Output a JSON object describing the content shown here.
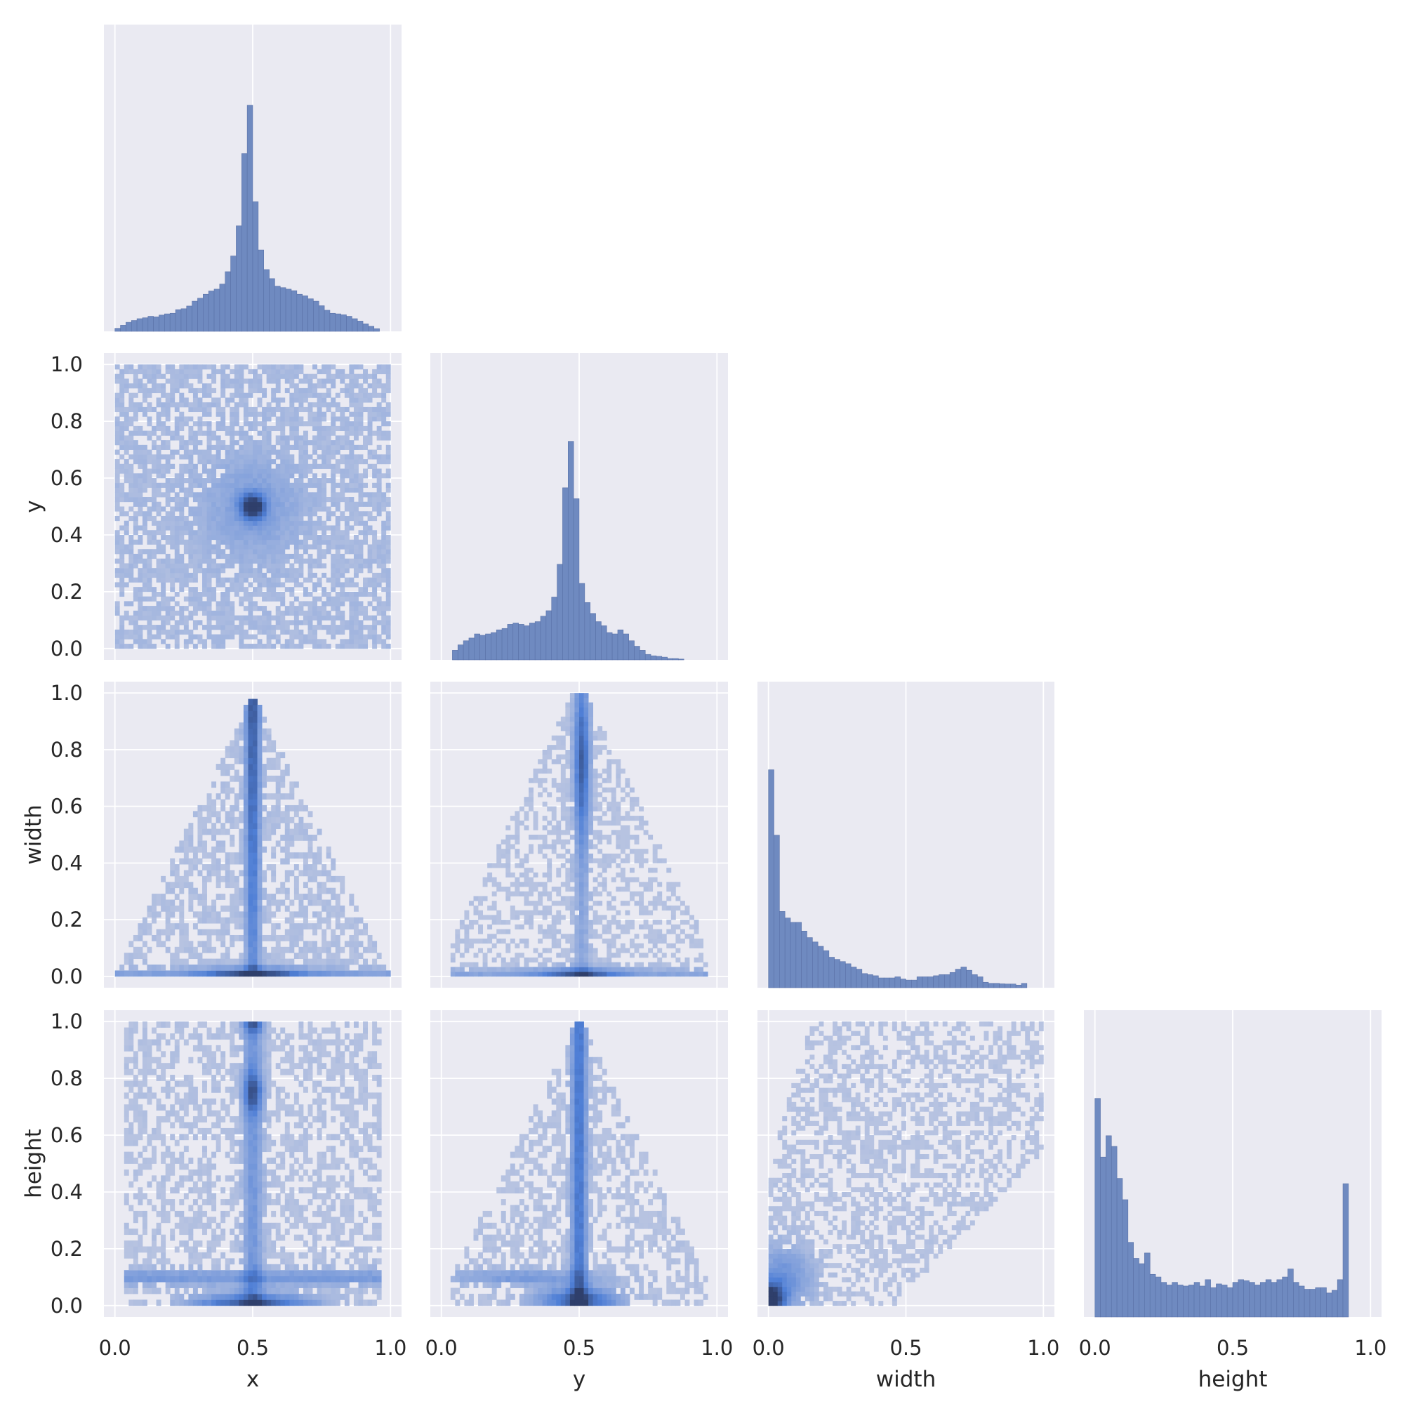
{
  "chart_data": {
    "type": "pairplot",
    "variables": [
      "x",
      "y",
      "width",
      "height"
    ],
    "axis_labels": {
      "x": "x",
      "y": "y",
      "width": "width",
      "height": "height"
    },
    "ticks": [
      0.0,
      0.5,
      1.0
    ],
    "tick_labels_diag": [
      "0.0",
      "0.5",
      "1.0"
    ],
    "y_ticks": [
      0.0,
      0.2,
      0.4,
      0.6,
      0.8,
      1.0
    ],
    "y_tick_labels": [
      "0.0",
      "0.2",
      "0.4",
      "0.6",
      "0.8",
      "1.0"
    ],
    "xlim": [
      -0.04,
      1.04
    ],
    "ylim": [
      -0.04,
      1.04
    ],
    "grid": true,
    "corner": true,
    "colors": {
      "background": "#eaeaf2",
      "grid": "#ffffff",
      "bar": "#6f8ac0",
      "heat_low": "#b7c3e1",
      "heat_mid": "#4f7fd6",
      "heat_high": "#2f3f6b"
    },
    "histograms": {
      "x": {
        "bin_start": 0.0,
        "bin_width": 0.02,
        "counts": [
          1,
          2,
          3,
          3.6,
          4.2,
          4.5,
          5,
          4.8,
          5.4,
          5.8,
          6,
          7.2,
          7.5,
          8.4,
          10,
          11,
          12.3,
          13.4,
          14,
          15.7,
          19.8,
          25,
          35,
          59,
          75,
          43,
          27,
          20.5,
          17.5,
          15,
          14.5,
          14,
          13.5,
          12.3,
          11.8,
          10.8,
          10,
          8.5,
          7,
          6,
          5.8,
          5.5,
          5,
          4.2,
          3.4,
          2.5,
          1.7,
          0.9
        ]
      },
      "y": {
        "bin_start": 0.04,
        "bin_width": 0.02,
        "counts": [
          3.5,
          5.5,
          7,
          8,
          9.5,
          9,
          9.5,
          10,
          11,
          11.5,
          13,
          13.5,
          13,
          12.5,
          13.5,
          14,
          16,
          18,
          23,
          35,
          63,
          80,
          59,
          28,
          21,
          17,
          14,
          12.5,
          10,
          9.5,
          11,
          9.5,
          7,
          5,
          3.5,
          2,
          1.5,
          1.3,
          1,
          0.5,
          0.5,
          0.3
        ]
      },
      "width": {
        "bin_start": 0.0,
        "bin_width": 0.02,
        "counts": [
          100,
          70,
          35,
          32,
          30,
          30,
          26,
          23,
          21,
          19,
          17,
          14,
          13,
          12,
          11,
          9.5,
          8.5,
          6.5,
          6,
          5.5,
          4.5,
          4.5,
          4.5,
          5,
          4,
          3.5,
          3.5,
          5,
          5,
          5,
          5.5,
          6,
          6,
          7,
          8.5,
          9.5,
          8,
          6,
          5,
          2.5,
          2,
          2,
          1.8,
          1.7,
          1.7,
          1.2,
          2
        ]
      },
      "height": {
        "bin_start": 0.0,
        "bin_width": 0.02,
        "counts": [
          41,
          30,
          34,
          32,
          26,
          22,
          14,
          11,
          10,
          12,
          8,
          7.5,
          6.5,
          6,
          6.5,
          6,
          5.8,
          6,
          6.5,
          5.8,
          7,
          5.5,
          6.2,
          6,
          5.5,
          6.5,
          7,
          6.8,
          6.5,
          6,
          6.5,
          7,
          6.5,
          7,
          7.5,
          9,
          6.5,
          5.8,
          5.2,
          5.2,
          5.5,
          5.5,
          4.5,
          5,
          7,
          25
        ]
      }
    }
  }
}
